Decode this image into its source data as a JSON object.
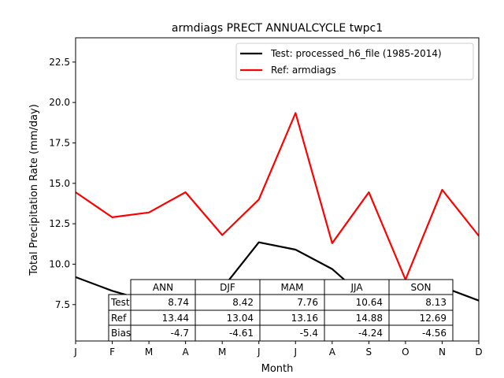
{
  "chart_data": {
    "type": "line",
    "title": "armdiags PRECT ANNUALCYCLE twpc1",
    "xlabel": "Month",
    "ylabel": "Total Precipitation Rate (mm/day)",
    "categories": [
      "J",
      "F",
      "M",
      "A",
      "M",
      "J",
      "J",
      "A",
      "S",
      "O",
      "N",
      "D"
    ],
    "ylim": [
      5.25,
      24.0
    ],
    "yticks": [
      7.5,
      10.0,
      12.5,
      15.0,
      17.5,
      20.0,
      22.5
    ],
    "ytick_labels": [
      "7.5",
      "10.0",
      "12.5",
      "15.0",
      "17.5",
      "20.0",
      "22.5"
    ],
    "grid": false,
    "legend_position": "top-right",
    "series": [
      {
        "name": "Test: processed_h6_file (1985-2014)",
        "color": "#000000",
        "values": [
          9.2,
          8.35,
          7.7,
          7.15,
          8.5,
          11.35,
          10.9,
          9.7,
          7.7,
          8.1,
          8.6,
          7.75
        ]
      },
      {
        "name": "Ref: armdiags",
        "color": "#ff0000",
        "values": [
          14.45,
          12.9,
          13.2,
          14.45,
          11.8,
          14.0,
          19.35,
          11.3,
          14.45,
          9.05,
          14.6,
          11.75
        ]
      }
    ],
    "table": {
      "columns": [
        "ANN",
        "DJF",
        "MAM",
        "JJA",
        "SON"
      ],
      "rows": [
        {
          "label": "Test",
          "values": [
            "8.74",
            "8.42",
            "7.76",
            "10.64",
            "8.13"
          ]
        },
        {
          "label": "Ref",
          "values": [
            "13.44",
            "13.04",
            "13.16",
            "14.88",
            "12.69"
          ]
        },
        {
          "label": "Bias",
          "values": [
            "-4.7",
            "-4.61",
            "-5.4",
            "-4.24",
            "-4.56"
          ]
        }
      ]
    }
  }
}
